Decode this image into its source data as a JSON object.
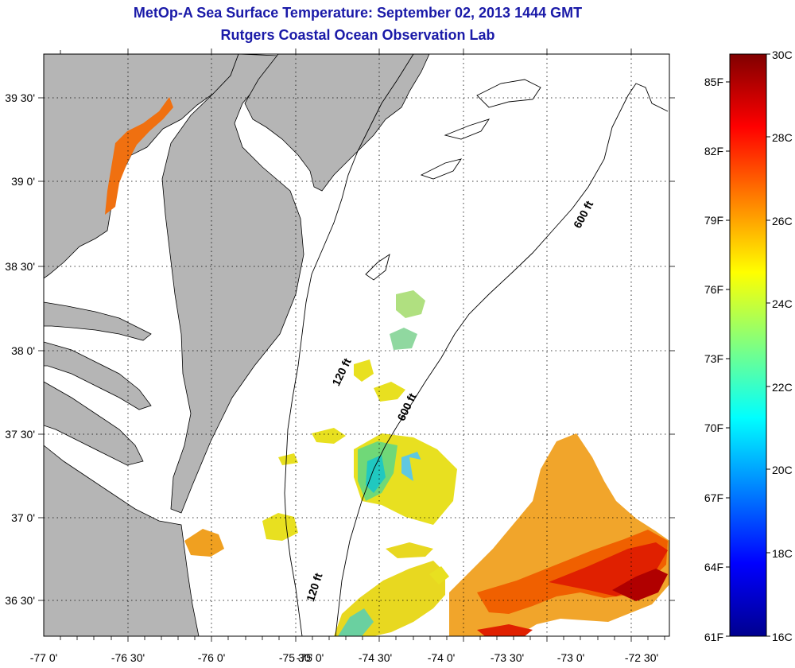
{
  "header": {
    "title": "MetOp-A Sea Surface Temperature:  September 02, 2013 1444 GMT",
    "subtitle": "Rutgers Coastal Ocean Observation Lab"
  },
  "map": {
    "lon_ticks": [
      "-77 0'",
      "-76 30'",
      "-76 0'",
      "-75 30'",
      "-75 0'",
      "-74 30'",
      "-74 0'",
      "-73 30'",
      "-73 0'",
      "-72 30'"
    ],
    "lat_ticks": [
      "39 30'",
      "39 0'",
      "38 30'",
      "38 0'",
      "37 30'",
      "37 0'",
      "36 30'"
    ],
    "isobaths": [
      {
        "label": "600 ft"
      },
      {
        "label": "600 ft"
      },
      {
        "label": "120 ft"
      },
      {
        "label": "120 ft"
      }
    ],
    "land_color": "#b5b5b5",
    "grid": true
  },
  "colorbar": {
    "celsius": [
      "30C",
      "28C",
      "26C",
      "24C",
      "22C",
      "20C",
      "18C",
      "16C"
    ],
    "fahrenheit": [
      "85F",
      "82F",
      "79F",
      "76F",
      "73F",
      "70F",
      "67F",
      "64F",
      "61F"
    ],
    "colors": [
      "#00008f",
      "#0000ff",
      "#0080ff",
      "#00ffff",
      "#80ff80",
      "#ffff00",
      "#ff8000",
      "#ff0000",
      "#800000"
    ]
  }
}
